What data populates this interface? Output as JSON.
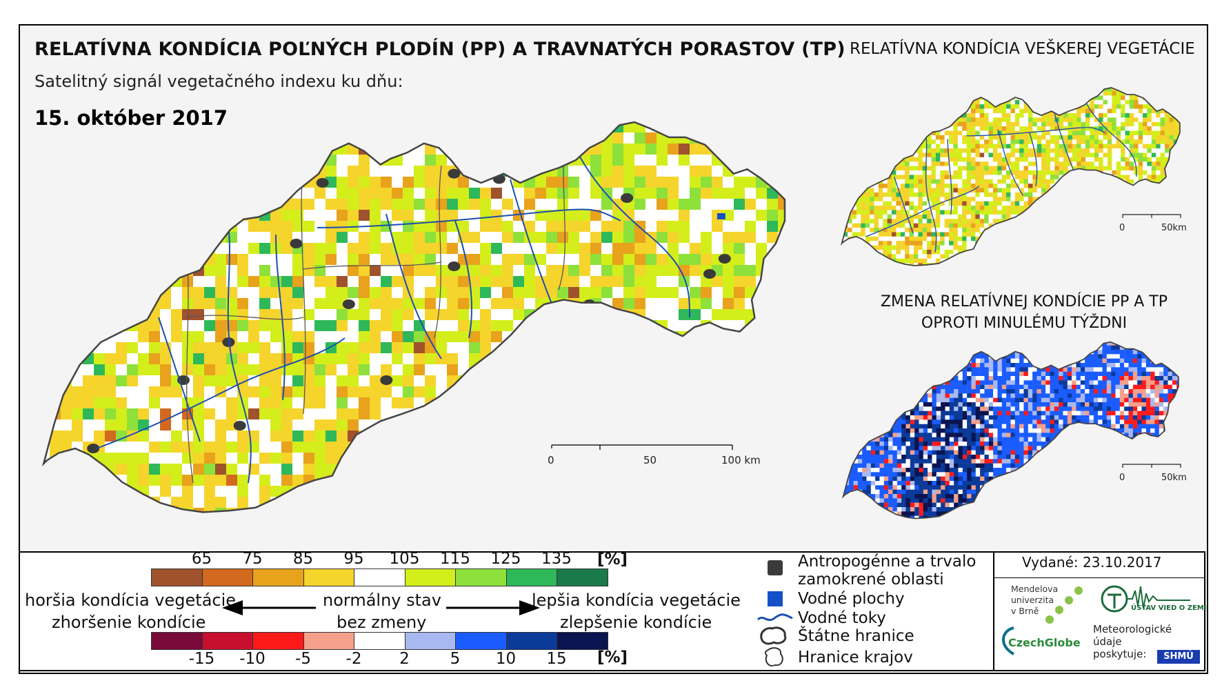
{
  "title": "RELATÍVNA KONDÍCIA POĽNÝCH PLODÍN (PP) A TRAVNATÝCH PORASTOV (TP)",
  "subtitle": "Satelitný signál vegetačného indexu ku dňu:",
  "date": "15. október 2017",
  "right_title": "RELATÍVNA KONDÍCIA VEŠKEREJ VEGETÁCIE",
  "change_title_line1": "ZMENA RELATÍVNEJ KONDÍCIE PP A TP",
  "change_title_line2": "OPROTI MINULÉMU TÝŽDNI",
  "main_scale": {
    "labels": [
      "0",
      "50",
      "100 km"
    ]
  },
  "small_scale_1": {
    "labels": [
      "0",
      "50km"
    ]
  },
  "small_scale_2": {
    "labels": [
      "0",
      "50km"
    ]
  },
  "condition_legend": {
    "unit": "[%]",
    "ticks": [
      "65",
      "75",
      "85",
      "95",
      "105",
      "115",
      "125",
      "135"
    ],
    "colors": [
      "#a0522d",
      "#d2691e",
      "#e8a21c",
      "#f5d42c",
      "#ffffff",
      "#d4ee1c",
      "#8ee03a",
      "#2fb85a",
      "#1a7a4a"
    ]
  },
  "change_legend": {
    "unit": "[%]",
    "ticks": [
      "-15",
      "-10",
      "-5",
      "-2",
      "2",
      "5",
      "10",
      "15"
    ],
    "colors": [
      "#7a0a3a",
      "#c8102e",
      "#ff1a1a",
      "#f5a08a",
      "#ffffff",
      "#a8b8f0",
      "#1a5cff",
      "#0a3a9a",
      "#0a1450"
    ]
  },
  "arrows": {
    "left_top": "horšia kondícia vegetácie",
    "left_bottom": "zhoršenie kondície",
    "center_top": "normálny stav",
    "center_bottom": "bez zmeny",
    "right_top": "lepšia kondícia vegetácie",
    "right_bottom": "zlepšenie kondície"
  },
  "symbols": {
    "anthropogenic_line1": "Antropogénne a trvalo",
    "anthropogenic_line2": "zamokrené oblasti",
    "water_bodies": "Vodné plochy",
    "rivers": "Vodné toky",
    "state_border": "Štátne hranice",
    "region_border": "Hranice krajov"
  },
  "issued": "Vydané: 23.10.2017",
  "logos": {
    "mendel_line1": "Mendelova",
    "mendel_line2": "univerzita",
    "mendel_line3": "v Brně",
    "czechglobe": "CzechGlobe",
    "ustav": "ÚSTAV VIED O ZEMI",
    "meteo_line1": "Meteorologické",
    "meteo_line2": "údaje",
    "meteo_line3": "poskytuje:",
    "shmu": "SHMÚ"
  },
  "colors": {
    "frame_background": "#f4f4f4",
    "river": "#1a4fb0",
    "anthropogenic": "#3a3a3a",
    "water_body": "#1450c8"
  }
}
